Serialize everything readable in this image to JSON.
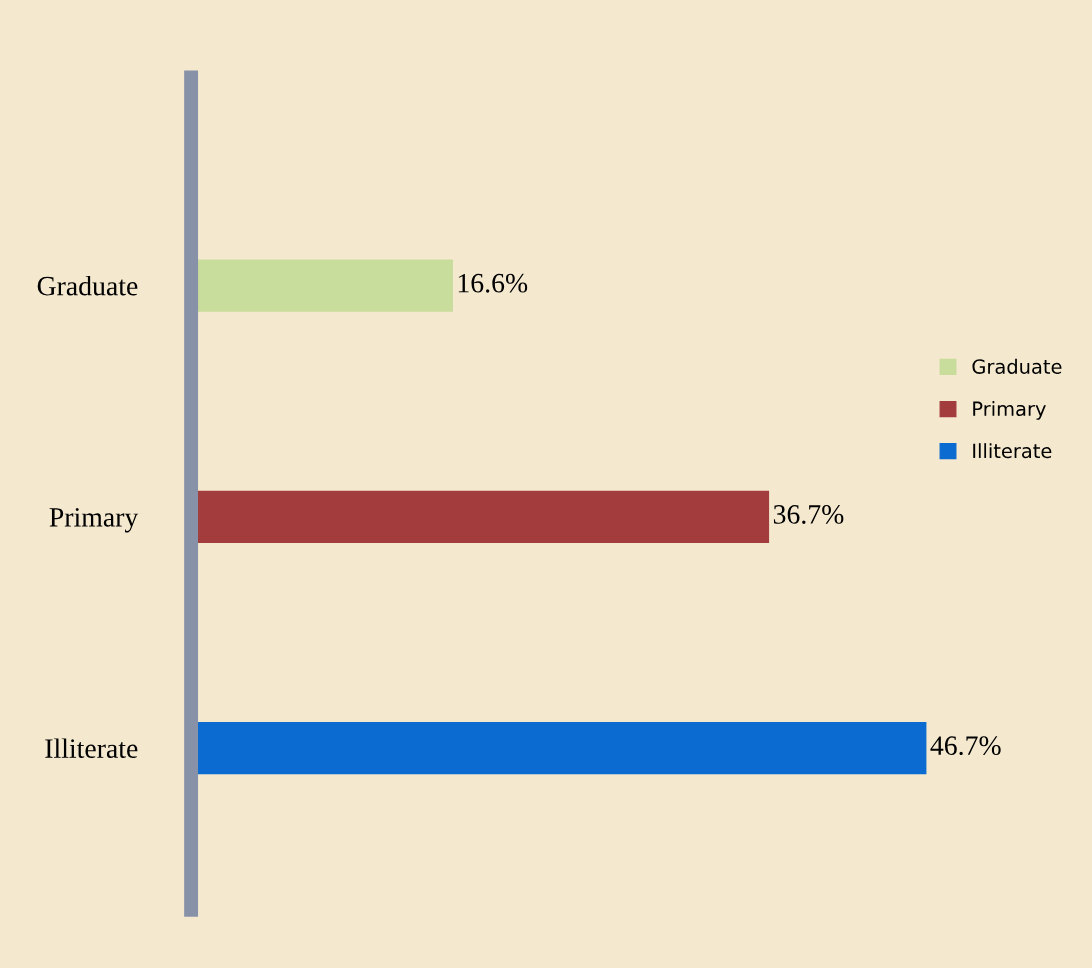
{
  "chart_data": {
    "type": "bar",
    "orientation": "horizontal",
    "categories": [
      "Graduate",
      "Primary",
      "Illiterate"
    ],
    "series": [
      {
        "name": "Graduate",
        "color": "#c8dc9c",
        "values": [
          16.6,
          null,
          null
        ],
        "value_labels": [
          "16.6%",
          null,
          null
        ]
      },
      {
        "name": "Primary",
        "color": "#a33d3d",
        "values": [
          null,
          36.7,
          null
        ],
        "value_labels": [
          null,
          "36.7%",
          null
        ]
      },
      {
        "name": "Illiterate",
        "color": "#0b6bd0",
        "values": [
          null,
          null,
          46.7
        ],
        "value_labels": [
          null,
          null,
          "46.7%"
        ]
      }
    ],
    "legend": "right",
    "tick_labels": "y",
    "grid": false
  }
}
